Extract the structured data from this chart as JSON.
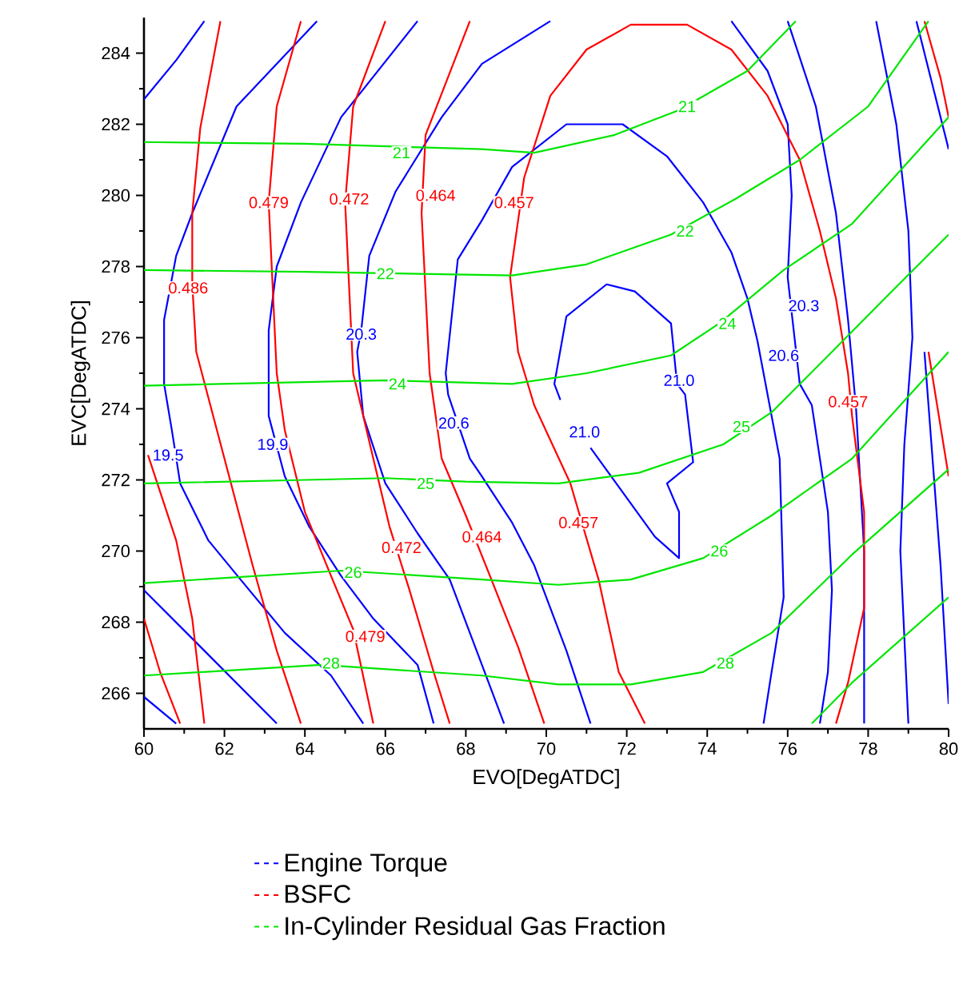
{
  "chart_data": {
    "type": "line",
    "xlabel": "EVO[DegATDC]",
    "ylabel": "EVC[DegATDC]",
    "xlim": [
      60,
      80
    ],
    "ylim": [
      265,
      285
    ],
    "xticks": [
      60,
      62,
      64,
      66,
      68,
      70,
      72,
      74,
      76,
      78,
      80
    ],
    "yticks": [
      266,
      268,
      270,
      272,
      274,
      276,
      278,
      280,
      282,
      284
    ],
    "grid": false,
    "legend": "bottom",
    "series": [
      {
        "name": "Engine Torque",
        "color": "#0000ff",
        "x": [
          64.3,
          62.3,
          61.2,
          60.8,
          60.5,
          60.5,
          60.7,
          60.9,
          61.6,
          62.4,
          63.5,
          64.65,
          65.45
        ],
        "values": [
          284.9,
          282.5,
          279.5,
          278.3,
          276.5,
          274.7,
          273.35,
          271.9,
          270.3,
          269.2,
          267.7,
          266.5,
          265.15
        ]
      },
      {
        "color": "#0000ff",
        "x": [
          60,
          60.8,
          61.5
        ],
        "values": [
          282.7,
          283.8,
          284.9
        ]
      },
      {
        "color": "#0000ff",
        "x": [
          66.8,
          64.9,
          63.9,
          63.3,
          63.1,
          63.1,
          63.5,
          64.1,
          64.9,
          65.7,
          66.8,
          67.2
        ],
        "values": [
          284.9,
          282.2,
          279.8,
          278.0,
          276.2,
          273.8,
          272.1,
          270.7,
          269.3,
          268.1,
          266.8,
          265.15
        ]
      },
      {
        "color": "#0000ff",
        "x": [
          70.1,
          68.4,
          67.4,
          66.25,
          65.6,
          65.4,
          65.3,
          65.45,
          66.0,
          66.8,
          67.6,
          68.2,
          68.95
        ],
        "values": [
          284.9,
          283.7,
          282.2,
          280.1,
          278.3,
          276.2,
          275.6,
          273.8,
          271.9,
          270.5,
          269.2,
          267.4,
          265.15
        ]
      },
      {
        "color": "#0000ff",
        "x": [
          71.1,
          70.5,
          69.7,
          69.15,
          68.4,
          68.1,
          67.56,
          67.5,
          67.8,
          68.4,
          69.15,
          70.5,
          71.9,
          73.0,
          73.9,
          74.6,
          75.0,
          75.25,
          75.4,
          75.8,
          75.9,
          75.6,
          75.4
        ],
        "values": [
          265.15,
          267.2,
          269.6,
          270.8,
          272.1,
          272.6,
          274.4,
          275.0,
          278.2,
          279.3,
          280.8,
          282.0,
          282.0,
          281.1,
          279.8,
          278.4,
          277.1,
          275.9,
          275.0,
          272.6,
          268.7,
          266.6,
          265.15
        ]
      },
      {
        "color": "#0000ff",
        "x": [
          71.1,
          72.7,
          73.3,
          73.3,
          73.0,
          73.65,
          73.45,
          73.25,
          73.1,
          72.2,
          71.5,
          70.5,
          70.2,
          70.35
        ],
        "values": [
          272.9,
          270.4,
          269.8,
          271.1,
          271.9,
          272.5,
          274.4,
          274.7,
          276.4,
          277.3,
          277.5,
          276.6,
          274.7,
          274.25
        ]
      },
      {
        "color": "#0000ff",
        "x": [
          74.6,
          75.5,
          76.0,
          76.1,
          76.0,
          76.3,
          76.6,
          77.0,
          77.1,
          77.0,
          76.8
        ],
        "values": [
          284.9,
          283.5,
          282.0,
          280.0,
          277.7,
          274.7,
          274.1,
          271.1,
          268.9,
          266.6,
          265.15
        ]
      },
      {
        "color": "#0000ff",
        "x": [
          76.0,
          76.7,
          77.2,
          77.5,
          77.7,
          77.9,
          77.9
        ],
        "values": [
          284.9,
          282.5,
          279.5,
          276.5,
          274.0,
          270.0,
          265.15
        ]
      },
      {
        "color": "#0000ff",
        "x": [
          78.2,
          78.7,
          79.0,
          79.1,
          78.9,
          78.8,
          79.0
        ],
        "values": [
          284.9,
          282.0,
          279.0,
          276.0,
          273.0,
          270.0,
          265.15
        ]
      },
      {
        "color": "#0000ff",
        "x": [
          79.2,
          80
        ],
        "values": [
          284.9,
          281.3
        ]
      },
      {
        "color": "#0000ff",
        "x": [
          79.4,
          79.8,
          80
        ],
        "values": [
          275.6,
          269.6,
          265.7
        ]
      },
      {
        "color": "#0000ff",
        "x": [
          60,
          61.5,
          63.3
        ],
        "values": [
          268.9,
          267.2,
          265.15
        ]
      },
      {
        "color": "#0000ff",
        "x": [
          60,
          60.8
        ],
        "values": [
          265.9,
          265.15
        ]
      },
      {
        "name": "BSFC",
        "color": "#ff0000",
        "x": [
          61.9,
          61.4,
          61.2,
          61.2,
          61.3,
          62.0,
          62.7,
          63.3,
          63.9
        ],
        "values": [
          284.9,
          281.9,
          279.5,
          277.5,
          275.6,
          272.6,
          269.6,
          267.2,
          265.15
        ]
      },
      {
        "color": "#ff0000",
        "x": [
          63.9,
          63.3,
          63.1,
          63.3,
          63.5,
          64.0,
          64.65,
          65.2,
          65.7
        ],
        "values": [
          284.9,
          282.5,
          279.8,
          275.0,
          273.4,
          271.1,
          269.3,
          267.8,
          265.15
        ]
      },
      {
        "color": "#ff0000",
        "x": [
          66.0,
          65.2,
          65.0,
          65.2,
          65.7,
          66.1,
          66.6,
          67.2,
          67.6
        ],
        "values": [
          284.9,
          282.5,
          279.8,
          275.0,
          272.6,
          270.7,
          268.9,
          266.6,
          265.15
        ]
      },
      {
        "color": "#ff0000",
        "x": [
          68.1,
          67.0,
          66.9,
          67.1,
          67.4,
          68.0,
          68.6,
          69.3,
          69.95
        ],
        "values": [
          284.9,
          281.7,
          279.5,
          275.0,
          272.6,
          271.0,
          269.3,
          267.3,
          265.15
        ]
      },
      {
        "color": "#ff0000",
        "x": [
          72.45,
          71.8,
          71.3,
          70.6,
          69.7,
          69.3,
          69.1,
          69.45,
          70.1,
          71.0,
          72.1,
          73.5,
          74.6,
          75.5,
          76.3,
          76.8,
          77.2,
          77.5,
          77.6,
          77.9,
          77.9,
          77.5,
          77.2
        ],
        "values": [
          265.15,
          266.6,
          269.2,
          271.9,
          274.1,
          275.6,
          277.7,
          280.5,
          282.8,
          284.1,
          284.8,
          284.8,
          284.1,
          282.8,
          281.0,
          279.0,
          277.1,
          275.0,
          273.8,
          271.1,
          268.4,
          266.3,
          265.15
        ]
      },
      {
        "color": "#ff0000",
        "x": [
          79.4,
          79.8,
          80
        ],
        "values": [
          284.9,
          283.3,
          282.2
        ]
      },
      {
        "color": "#ff0000",
        "x": [
          79.5,
          80
        ],
        "values": [
          275.6,
          272.1
        ]
      },
      {
        "color": "#ff0000",
        "x": [
          60.1,
          60.8,
          61.2,
          61.5
        ],
        "values": [
          272.7,
          270.3,
          268.1,
          265.15
        ]
      },
      {
        "color": "#ff0000",
        "x": [
          60,
          60.4,
          60.9
        ],
        "values": [
          268.1,
          266.6,
          265.15
        ]
      },
      {
        "name": "In-Cylinder Residual Gas Fraction",
        "color": "#00e600",
        "x": [
          60,
          64,
          68.4,
          69.7,
          71.7,
          73.3,
          75.0,
          76.2
        ],
        "values": [
          281.5,
          281.45,
          281.3,
          281.2,
          281.7,
          282.4,
          283.5,
          284.9
        ]
      },
      {
        "color": "#00e600",
        "x": [
          60,
          64,
          69.15,
          71.0,
          73.1,
          74.7,
          76.3,
          78,
          79.5
        ],
        "values": [
          277.9,
          277.85,
          277.75,
          278.06,
          278.9,
          279.9,
          281.0,
          282.5,
          284.9
        ]
      },
      {
        "color": "#00e600",
        "x": [
          60,
          66,
          69.15,
          71.0,
          73.1,
          74.3,
          75.9,
          77.6,
          80
        ],
        "values": [
          274.65,
          274.8,
          274.7,
          275.0,
          275.5,
          276.4,
          277.9,
          279.2,
          282.2
        ]
      },
      {
        "color": "#00e600",
        "x": [
          60,
          64,
          66,
          68,
          70.3,
          72.3,
          74.4,
          75.6,
          77.1,
          78.5,
          80
        ],
        "values": [
          271.9,
          272.0,
          272.05,
          271.95,
          271.9,
          272.2,
          273.0,
          273.9,
          275.6,
          277.2,
          278.9
        ]
      },
      {
        "color": "#00e600",
        "x": [
          60,
          64.9,
          68.4,
          70.3,
          72.1,
          73.9,
          75.6,
          77.6,
          80
        ],
        "values": [
          269.1,
          269.45,
          269.2,
          269.05,
          269.2,
          269.8,
          271.0,
          272.6,
          275.6
        ]
      },
      {
        "color": "#00e600",
        "x": [
          60,
          64.4,
          68.4,
          70.3,
          72.1,
          73.9,
          75.6,
          77.6,
          80
        ],
        "values": [
          266.5,
          266.8,
          266.5,
          266.25,
          266.25,
          266.6,
          267.7,
          269.9,
          272.3
        ]
      },
      {
        "color": "#00e600",
        "x": [
          76.6,
          77.6,
          80
        ],
        "values": [
          265.15,
          266.3,
          268.7
        ]
      }
    ],
    "annotations": [
      {
        "text": "19.5",
        "x": 60.6,
        "y": 272.7
      },
      {
        "text": "19.9",
        "x": 63.2,
        "y": 273.0
      },
      {
        "text": "20.3",
        "x": 65.4,
        "y": 276.1
      },
      {
        "text": "20.6",
        "x": 67.7,
        "y": 273.6
      },
      {
        "text": "21.0",
        "x": 73.3,
        "y": 274.8
      },
      {
        "text": "21.0",
        "x": 70.95,
        "y": 273.35
      },
      {
        "text": "20.6",
        "x": 75.9,
        "y": 275.5
      },
      {
        "text": "20.3",
        "x": 76.4,
        "y": 276.9
      },
      {
        "text": "0.486",
        "x": 61.1,
        "y": 277.4
      },
      {
        "text": "0.479",
        "x": 63.1,
        "y": 279.8
      },
      {
        "text": "0.472",
        "x": 65.1,
        "y": 279.9
      },
      {
        "text": "0.464",
        "x": 67.25,
        "y": 280.0
      },
      {
        "text": "0.457",
        "x": 69.2,
        "y": 279.8
      },
      {
        "text": "0.457",
        "x": 77.5,
        "y": 274.2
      },
      {
        "text": "0.472",
        "x": 66.4,
        "y": 270.1
      },
      {
        "text": "0.464",
        "x": 68.4,
        "y": 270.4
      },
      {
        "text": "0.457",
        "x": 70.8,
        "y": 270.8
      },
      {
        "text": "0.479",
        "x": 65.5,
        "y": 267.6
      },
      {
        "text": "21",
        "x": 66.4,
        "y": 281.2
      },
      {
        "text": "21",
        "x": 73.5,
        "y": 282.5
      },
      {
        "text": "22",
        "x": 66.0,
        "y": 277.8
      },
      {
        "text": "22",
        "x": 73.45,
        "y": 279.0
      },
      {
        "text": "24",
        "x": 66.3,
        "y": 274.7
      },
      {
        "text": "24",
        "x": 74.5,
        "y": 276.4
      },
      {
        "text": "25",
        "x": 67.0,
        "y": 271.9
      },
      {
        "text": "25",
        "x": 74.85,
        "y": 273.5
      },
      {
        "text": "26",
        "x": 65.2,
        "y": 269.4
      },
      {
        "text": "26",
        "x": 74.3,
        "y": 270.0
      },
      {
        "text": "28",
        "x": 64.65,
        "y": 266.85
      },
      {
        "text": "28",
        "x": 74.45,
        "y": 266.85
      }
    ]
  }
}
